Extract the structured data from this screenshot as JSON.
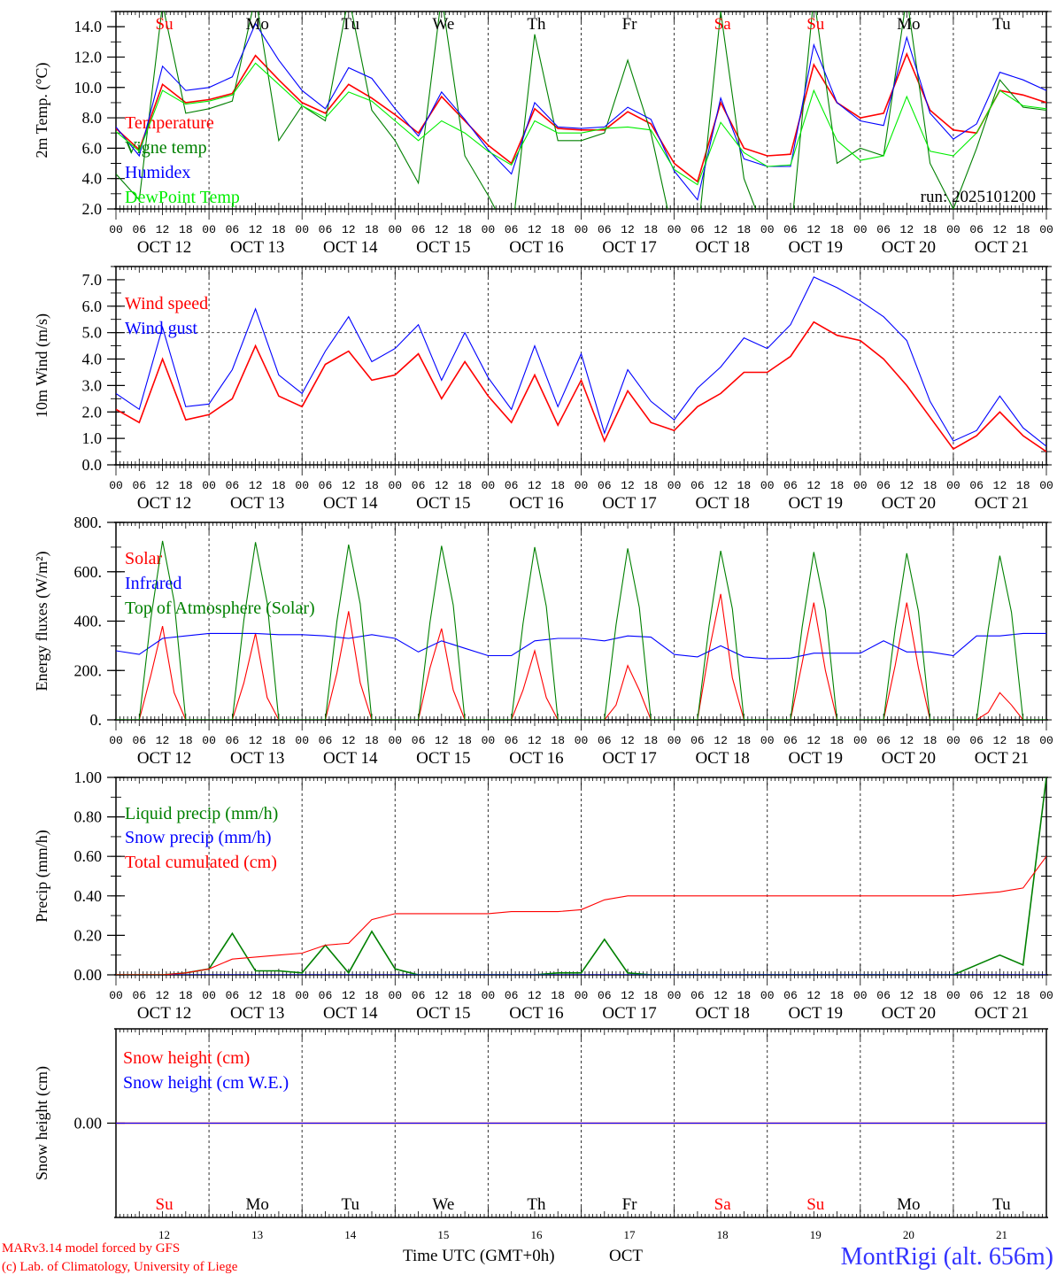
{
  "x_axis": {
    "hour_labels": [
      "00",
      "06",
      "12",
      "18"
    ],
    "final_hour_label": "00",
    "date_labels": [
      "OCT 12",
      "OCT 13",
      "OCT 14",
      "OCT 15",
      "OCT 16",
      "OCT 17",
      "OCT 18",
      "OCT 19",
      "OCT 20",
      "OCT 21"
    ],
    "weekday_labels": [
      "Su",
      "Mo",
      "Tu",
      "We",
      "Th",
      "Fr",
      "Sa",
      "Su",
      "Mo",
      "Tu"
    ],
    "weekday_colors": [
      "#ff0000",
      "#000000",
      "#000000",
      "#000000",
      "#000000",
      "#000000",
      "#ff0000",
      "#ff0000",
      "#000000",
      "#000000"
    ],
    "day_numbers": [
      "12",
      "13",
      "14",
      "15",
      "16",
      "17",
      "18",
      "19",
      "20",
      "21"
    ],
    "title": "Time UTC (GMT+0h)",
    "month": "OCT"
  },
  "footer": {
    "model_line": "MARv3.14 model forced by GFS",
    "credit_line": "(c) Lab. of Climatology, University of Liege",
    "station": "MontRigi (alt. 656m)"
  },
  "chart_data": [
    {
      "type": "line",
      "title": "",
      "ylabel": "2m Temp. (°C)",
      "ylim": [
        2,
        15
      ],
      "yticks": [
        "2.0",
        "4.0",
        "6.0",
        "8.0",
        "10.0",
        "12.0",
        "14.0"
      ],
      "ytick_values": [
        2,
        4,
        6,
        8,
        10,
        12,
        14
      ],
      "x_step_hours": 6,
      "annotation": "run: 2025101200",
      "series": [
        {
          "name": "Temperature",
          "color": "#ff0000",
          "values": [
            7.3,
            5.9,
            10.2,
            9.0,
            9.2,
            9.6,
            12.1,
            10.5,
            9.0,
            8.3,
            10.2,
            9.3,
            8.2,
            7.0,
            9.4,
            7.8,
            6.2,
            5.0,
            8.6,
            7.3,
            7.2,
            7.2,
            8.4,
            7.6,
            5.0,
            3.8,
            9.0,
            6.0,
            5.5,
            5.6,
            11.5,
            9.0,
            8.0,
            8.3,
            12.2,
            8.5,
            7.2,
            7.0,
            9.8,
            9.5,
            9.0
          ]
        },
        {
          "name": "Vigne temp",
          "color": "#008000",
          "values": [
            4.3,
            2.6,
            15.5,
            8.3,
            8.6,
            9.1,
            16.0,
            6.5,
            8.8,
            7.8,
            16.0,
            8.5,
            6.5,
            3.7,
            16.0,
            5.5,
            2.9,
            0.0,
            13.5,
            6.5,
            6.5,
            7.0,
            11.8,
            7.0,
            0.0,
            0.0,
            15.0,
            4.0,
            0.0,
            0.0,
            16.0,
            5.0,
            6.0,
            5.5,
            16.0,
            5.0,
            2.0,
            6.0,
            10.5,
            8.7,
            8.5
          ]
        },
        {
          "name": "Humidex",
          "color": "#0000ff",
          "values": [
            7.4,
            5.5,
            11.4,
            9.8,
            10.0,
            10.7,
            14.2,
            11.8,
            9.8,
            8.6,
            11.3,
            10.6,
            8.6,
            6.8,
            9.7,
            7.9,
            5.9,
            4.3,
            9.0,
            7.4,
            7.3,
            7.4,
            8.7,
            7.9,
            4.5,
            2.6,
            9.3,
            5.3,
            4.8,
            4.8,
            12.8,
            9.0,
            7.8,
            7.5,
            13.3,
            8.3,
            6.6,
            7.6,
            11.0,
            10.5,
            9.8
          ]
        },
        {
          "name": "DewPoint Temp",
          "color": "#00ee00",
          "values": [
            7.1,
            5.8,
            9.8,
            8.9,
            9.1,
            9.5,
            11.6,
            10.2,
            8.8,
            8.0,
            9.7,
            9.1,
            7.8,
            6.5,
            7.8,
            7.0,
            5.8,
            4.9,
            7.8,
            7.0,
            7.0,
            7.3,
            7.4,
            7.2,
            4.6,
            3.6,
            7.7,
            5.7,
            4.8,
            4.9,
            9.8,
            6.5,
            5.2,
            5.5,
            9.4,
            5.8,
            5.5,
            7.0,
            9.8,
            8.8,
            8.6
          ]
        }
      ]
    },
    {
      "type": "line",
      "title": "",
      "ylabel": "10m Wind (m/s)",
      "ylim": [
        0,
        7.5
      ],
      "yticks": [
        "0.0",
        "1.0",
        "2.0",
        "3.0",
        "4.0",
        "5.0",
        "6.0",
        "7.0"
      ],
      "ytick_values": [
        0,
        1,
        2,
        3,
        4,
        5,
        6,
        7
      ],
      "x_step_hours": 6,
      "reference_line": 5.0,
      "series": [
        {
          "name": "Wind speed",
          "color": "#ff0000",
          "values": [
            2.1,
            1.6,
            4.0,
            1.7,
            1.9,
            2.5,
            4.5,
            2.6,
            2.2,
            3.8,
            4.3,
            3.2,
            3.4,
            4.2,
            2.5,
            3.9,
            2.6,
            1.6,
            3.4,
            1.5,
            3.2,
            0.9,
            2.8,
            1.6,
            1.3,
            2.2,
            2.7,
            3.5,
            3.5,
            4.1,
            5.4,
            4.9,
            4.7,
            4.0,
            3.0,
            1.8,
            0.6,
            1.1,
            2.0,
            1.1,
            0.5
          ]
        },
        {
          "name": "Wind gust",
          "color": "#0000ff",
          "values": [
            2.7,
            2.1,
            5.2,
            2.2,
            2.3,
            3.6,
            5.9,
            3.4,
            2.7,
            4.3,
            5.6,
            3.9,
            4.4,
            5.3,
            3.2,
            5.0,
            3.3,
            2.1,
            4.5,
            2.2,
            4.2,
            1.2,
            3.6,
            2.4,
            1.7,
            2.9,
            3.7,
            4.8,
            4.4,
            5.3,
            7.1,
            6.7,
            6.2,
            5.6,
            4.7,
            2.4,
            0.9,
            1.3,
            2.6,
            1.4,
            0.7
          ]
        }
      ]
    },
    {
      "type": "line",
      "title": "",
      "ylabel": "Energy fluxes (W/m²)",
      "ylim": [
        0,
        800
      ],
      "yticks": [
        "0.",
        "200.",
        "400.",
        "600.",
        "800."
      ],
      "ytick_values": [
        0,
        200,
        400,
        600,
        800
      ],
      "series": [
        {
          "name": "Solar",
          "color": "#ff0000",
          "x_step_hours": 3,
          "values": [
            0,
            0,
            0,
            180,
            380,
            110,
            0,
            0,
            0,
            0,
            0,
            150,
            350,
            90,
            0,
            0,
            0,
            0,
            0,
            190,
            440,
            150,
            0,
            0,
            0,
            0,
            0,
            210,
            370,
            120,
            0,
            0,
            0,
            0,
            0,
            120,
            280,
            90,
            0,
            0,
            0,
            0,
            0,
            60,
            220,
            120,
            0,
            0,
            0,
            0,
            0,
            280,
            510,
            170,
            0,
            0,
            0,
            0,
            0,
            230,
            475,
            200,
            0,
            0,
            0,
            0,
            0,
            220,
            475,
            210,
            0,
            0,
            0,
            0,
            0,
            30,
            110,
            60,
            0,
            0,
            0
          ]
        },
        {
          "name": "Infrared",
          "color": "#0000ff",
          "x_step_hours": 6,
          "values": [
            280,
            265,
            330,
            340,
            350,
            350,
            350,
            345,
            345,
            340,
            330,
            345,
            330,
            275,
            320,
            290,
            260,
            260,
            320,
            330,
            330,
            320,
            340,
            335,
            265,
            255,
            300,
            255,
            248,
            250,
            270,
            270,
            270,
            320,
            275,
            275,
            260,
            340,
            340,
            350,
            350
          ]
        },
        {
          "name": "Top of Atmosphere (Solar)",
          "color": "#008000",
          "x_step_hours": 3,
          "values": [
            0,
            0,
            0,
            410,
            725,
            480,
            0,
            0,
            0,
            0,
            0,
            405,
            720,
            475,
            0,
            0,
            0,
            0,
            0,
            400,
            710,
            470,
            0,
            0,
            0,
            0,
            0,
            395,
            705,
            465,
            0,
            0,
            0,
            0,
            0,
            390,
            700,
            460,
            0,
            0,
            0,
            0,
            0,
            385,
            695,
            455,
            0,
            0,
            0,
            0,
            0,
            380,
            685,
            450,
            0,
            0,
            0,
            0,
            0,
            375,
            680,
            445,
            0,
            0,
            0,
            0,
            0,
            370,
            675,
            440,
            0,
            0,
            0,
            0,
            0,
            365,
            665,
            435,
            0,
            0,
            0
          ]
        }
      ]
    },
    {
      "type": "line",
      "title": "",
      "ylabel": "Precip (mm/h)",
      "ylim": [
        0,
        1
      ],
      "yticks": [
        "0.00",
        "0.20",
        "0.40",
        "0.60",
        "0.80",
        "1.00"
      ],
      "ytick_values": [
        0,
        0.2,
        0.4,
        0.6,
        0.8,
        1.0
      ],
      "x_step_hours": 6,
      "series": [
        {
          "name": "Liquid precip (mm/h)",
          "color": "#008000",
          "values": [
            0,
            0,
            0,
            0.01,
            0.03,
            0.21,
            0.02,
            0.02,
            0.01,
            0.15,
            0.01,
            0.22,
            0.03,
            0,
            0,
            0,
            0,
            0,
            0,
            0.01,
            0.01,
            0.18,
            0.01,
            0,
            0,
            0,
            0,
            0,
            0,
            0,
            0,
            0,
            0,
            0,
            0,
            0,
            0,
            0.05,
            0.1,
            0.05,
            1.0
          ]
        },
        {
          "name": "Snow precip (mm/h)",
          "color": "#0000ff",
          "values": [
            0,
            0,
            0,
            0,
            0,
            0,
            0,
            0,
            0,
            0,
            0,
            0,
            0,
            0,
            0,
            0,
            0,
            0,
            0,
            0,
            0,
            0,
            0,
            0,
            0,
            0,
            0,
            0,
            0,
            0,
            0,
            0,
            0,
            0,
            0,
            0,
            0,
            0,
            0,
            0,
            0
          ]
        },
        {
          "name": "Total cumulated (cm)",
          "color": "#ff0000",
          "values": [
            0,
            0,
            0,
            0.01,
            0.03,
            0.08,
            0.09,
            0.1,
            0.11,
            0.15,
            0.16,
            0.28,
            0.31,
            0.31,
            0.31,
            0.31,
            0.31,
            0.32,
            0.32,
            0.32,
            0.33,
            0.38,
            0.4,
            0.4,
            0.4,
            0.4,
            0.4,
            0.4,
            0.4,
            0.4,
            0.4,
            0.4,
            0.4,
            0.4,
            0.4,
            0.4,
            0.4,
            0.41,
            0.42,
            0.44,
            0.6
          ]
        }
      ]
    },
    {
      "type": "line",
      "title": "",
      "ylabel": "Snow height (cm)",
      "ylim": [
        -1,
        1
      ],
      "yticks": [
        "0.00"
      ],
      "ytick_values": [
        0
      ],
      "x_step_hours": 6,
      "series": [
        {
          "name": "Snow height (cm)",
          "color": "#ff0000",
          "values": [
            0,
            0,
            0,
            0,
            0,
            0,
            0,
            0,
            0,
            0,
            0,
            0,
            0,
            0,
            0,
            0,
            0,
            0,
            0,
            0,
            0,
            0,
            0,
            0,
            0,
            0,
            0,
            0,
            0,
            0,
            0,
            0,
            0,
            0,
            0,
            0,
            0,
            0,
            0,
            0,
            0
          ]
        },
        {
          "name": "Snow height (cm W.E.)",
          "color": "#0000ff",
          "values": [
            0,
            0,
            0,
            0,
            0,
            0,
            0,
            0,
            0,
            0,
            0,
            0,
            0,
            0,
            0,
            0,
            0,
            0,
            0,
            0,
            0,
            0,
            0,
            0,
            0,
            0,
            0,
            0,
            0,
            0,
            0,
            0,
            0,
            0,
            0,
            0,
            0,
            0,
            0,
            0,
            0
          ]
        }
      ]
    }
  ]
}
